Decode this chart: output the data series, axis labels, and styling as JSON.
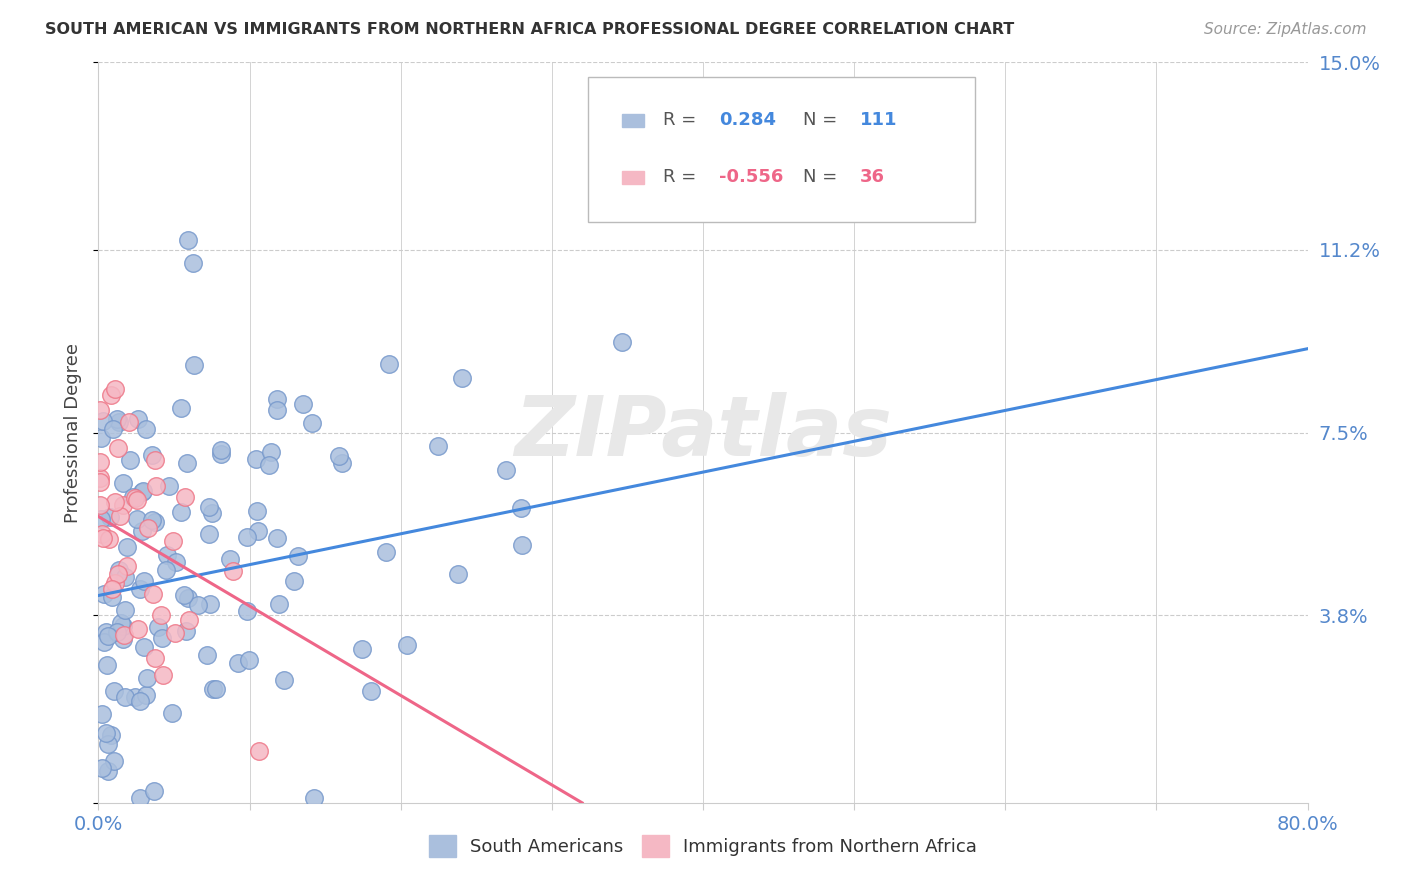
{
  "title": "SOUTH AMERICAN VS IMMIGRANTS FROM NORTHERN AFRICA PROFESSIONAL DEGREE CORRELATION CHART",
  "source": "Source: ZipAtlas.com",
  "ylabel": "Professional Degree",
  "xlim": [
    0.0,
    0.8
  ],
  "ylim": [
    0.0,
    0.15
  ],
  "ytick_positions": [
    0.0,
    0.038,
    0.075,
    0.112,
    0.15
  ],
  "ytick_labels": [
    "",
    "3.8%",
    "7.5%",
    "11.2%",
    "15.0%"
  ],
  "xtick_positions": [
    0.0,
    0.1,
    0.2,
    0.3,
    0.4,
    0.5,
    0.6,
    0.7,
    0.8
  ],
  "xtick_labels": [
    "0.0%",
    "",
    "",
    "",
    "",
    "",
    "",
    "",
    "80.0%"
  ],
  "background_color": "#ffffff",
  "watermark": "ZIPatlas",
  "blue_color": "#aabfdd",
  "blue_edge": "#7799cc",
  "pink_color": "#f5b8c4",
  "pink_edge": "#ee7788",
  "line_blue": "#4488dd",
  "line_pink": "#ee6688",
  "ytick_color": "#5588cc",
  "xtick_color": "#5588cc",
  "grid_color": "#cccccc",
  "spine_color": "#cccccc",
  "ylabel_color": "#444444",
  "title_color": "#333333",
  "source_color": "#999999",
  "legend_r_color": "#555555",
  "legend_v1_color": "#4488dd",
  "legend_v2_color": "#ee6688",
  "legend_n_color": "#333333",
  "legend_n1_color": "#4488dd",
  "legend_n2_color": "#ee6688",
  "blue_line_x0": 0.0,
  "blue_line_x1": 0.8,
  "blue_line_y0": 0.042,
  "blue_line_y1": 0.092,
  "pink_line_x0": 0.0,
  "pink_line_x1": 0.32,
  "pink_line_y0": 0.058,
  "pink_line_y1": 0.0
}
